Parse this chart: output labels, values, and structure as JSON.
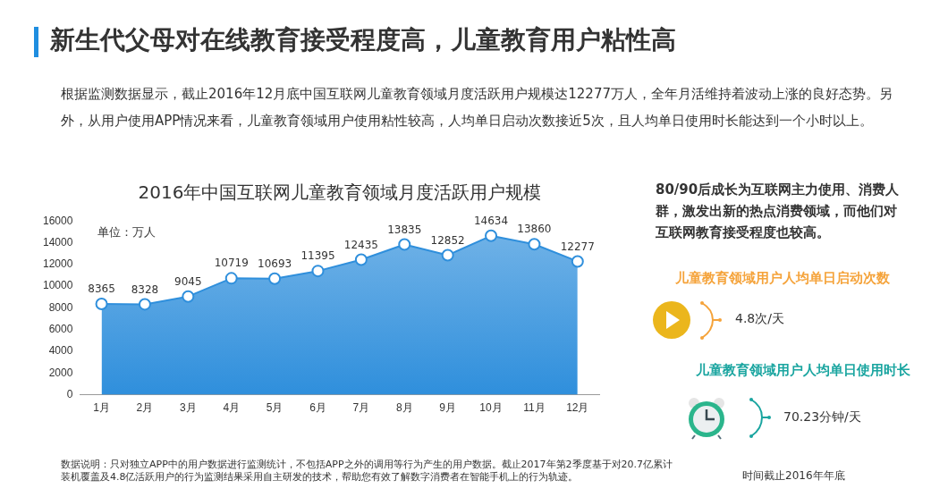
{
  "chart_data": {
    "type": "area",
    "title": "新生代父母对在线教育接受程度高，儿童教育用户粘性高",
    "subtitle": "2016年中国互联网儿童教育领域月度活跃用户规模",
    "ylabel": "单位：万人",
    "categories": [
      "1月",
      "2月",
      "3月",
      "4月",
      "5月",
      "6月",
      "7月",
      "8月",
      "9月",
      "10月",
      "11月",
      "12月"
    ],
    "series": [
      {
        "color": "#2f8fdc",
        "values": [
          8365,
          8328,
          9045,
          10719,
          10693,
          11395,
          12435,
          13835,
          12852,
          14634,
          13860,
          12277
        ]
      }
    ],
    "ylim": [
      0,
      16000
    ],
    "yticks": [
      0,
      2000,
      4000,
      6000,
      8000,
      10000,
      12000,
      14000,
      16000
    ],
    "data_labels": true,
    "grid": false,
    "legend": false,
    "marker": "circle",
    "line_style": "solid",
    "annotations": [
      "根据监测数据显示，截止2016年12月底中国互联网儿童教育领域月度活跃用户规模达12277万人，全年月活维持着波动上涨的良好态势。另外，从用户使用APP情况来看，儿童教育领域用户使用粘性较高，人均单日启动次数接近5次，且人均单日使用时长能达到一个小时以上。",
      "80/90后成长为互联网主力使用、消费人群，激发出新的热点消费领域，而他们对互联网教育接受程度也较高。",
      "儿童教育领域用户人均单日启动次数",
      "4.8次/天",
      "儿童教育领域用户人均单日使用时长",
      "70.23分钟/天",
      "数据说明：只对独立APP中的用户数据进行监测统计，不包括APP之外的调用等行为产生的用户数据。截止2017年第2季度基于对20.7亿累计装机覆盖及4.8亿活跃用户的行为监测结果采用自主研发的技术，帮助您有效了解数字消费者在智能手机上的行为轨迹。",
      "时间截止2016年年底"
    ]
  }
}
